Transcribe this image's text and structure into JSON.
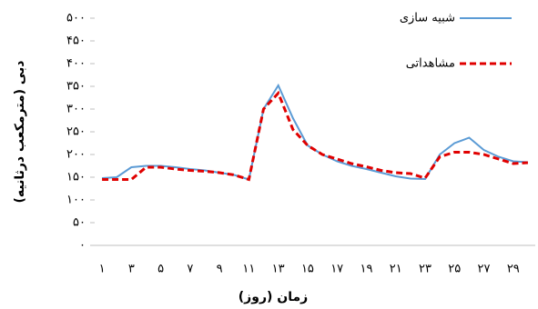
{
  "chart_data": {
    "type": "line",
    "x_label": "زمان (روز)",
    "y_label": "دبی (مترمکعب درثانیه)",
    "categories": [
      "۱",
      null,
      "۳",
      null,
      "۵",
      null,
      "۷",
      null,
      "۹",
      null,
      "۱۱",
      null,
      "۱۳",
      null,
      "۱۵",
      null,
      "۱۷",
      null,
      "۱۹",
      null,
      "۲۱",
      null,
      "۲۳",
      null,
      "۲۵",
      null,
      "۲۷",
      null,
      "۲۹",
      null
    ],
    "series": [
      {
        "name": "شبیه سازی",
        "color": "#5b9bd5",
        "dash": false,
        "values": [
          148,
          150,
          172,
          175,
          175,
          172,
          168,
          165,
          160,
          155,
          145,
          300,
          352,
          280,
          220,
          200,
          185,
          175,
          168,
          160,
          152,
          147,
          146,
          200,
          225,
          237,
          210,
          195,
          185,
          183
        ]
      },
      {
        "name": "مشاهداتی",
        "color": "#e00000",
        "dash": true,
        "values": [
          145,
          145,
          145,
          172,
          172,
          168,
          165,
          163,
          160,
          155,
          145,
          300,
          335,
          255,
          220,
          200,
          190,
          180,
          173,
          165,
          160,
          158,
          148,
          195,
          205,
          205,
          200,
          190,
          180,
          182
        ]
      }
    ],
    "ylim": [
      0,
      500
    ],
    "yticks": [
      {
        "value": 0,
        "label": "٠"
      },
      {
        "value": 50,
        "label": "۵۰"
      },
      {
        "value": 100,
        "label": "۱۰۰"
      },
      {
        "value": 150,
        "label": "۱۵۰"
      },
      {
        "value": 200,
        "label": "۲۰۰"
      },
      {
        "value": 250,
        "label": "۲۵۰"
      },
      {
        "value": 300,
        "label": "۳۰۰"
      },
      {
        "value": 350,
        "label": "۳۵۰"
      },
      {
        "value": 400,
        "label": "۴۰۰"
      },
      {
        "value": 450,
        "label": "۴۵۰"
      },
      {
        "value": 500,
        "label": "۵۰۰"
      }
    ],
    "legend": "top-right"
  }
}
